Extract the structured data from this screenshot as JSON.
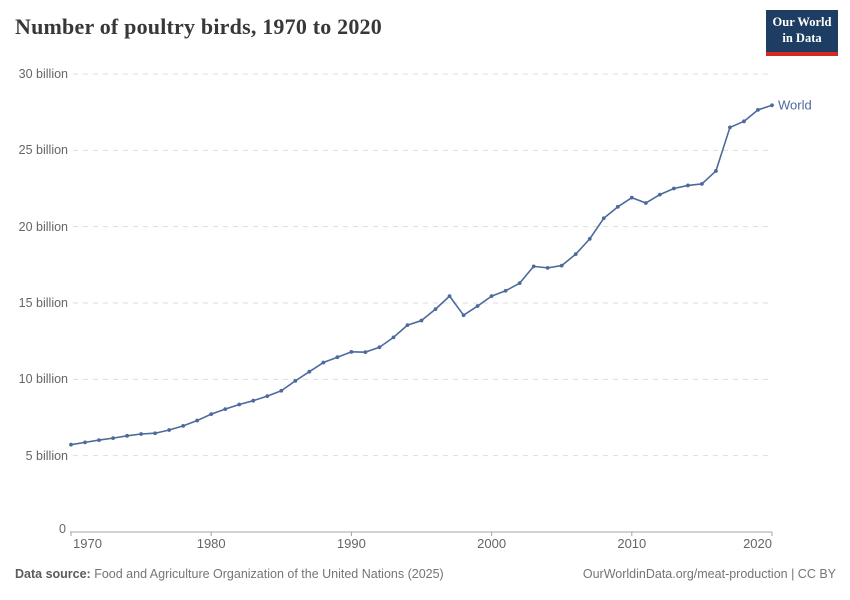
{
  "header": {
    "title": "Number of poultry birds, 1970 to 2020",
    "logo": {
      "line1": "Our World",
      "line2": "in Data"
    }
  },
  "chart_data": {
    "type": "line",
    "title": "Number of poultry birds, 1970 to 2020",
    "unit": "billion birds",
    "grid": "horizontal dashed",
    "legend_position": "end-of-line label",
    "xlim": [
      1970,
      2020
    ],
    "ylim": [
      0,
      30
    ],
    "x_ticks": [
      1970,
      1980,
      1990,
      2000,
      2010,
      2020
    ],
    "y_ticks": [
      {
        "value": 5,
        "label": "5 billion"
      },
      {
        "value": 10,
        "label": "10 billion"
      },
      {
        "value": 15,
        "label": "15 billion"
      },
      {
        "value": 20,
        "label": "20 billion"
      },
      {
        "value": 25,
        "label": "25 billion"
      },
      {
        "value": 30,
        "label": "30 billion"
      }
    ],
    "y_zero_label": "0",
    "x": [
      1970,
      1971,
      1972,
      1973,
      1974,
      1975,
      1976,
      1977,
      1978,
      1979,
      1980,
      1981,
      1982,
      1983,
      1984,
      1985,
      1986,
      1987,
      1988,
      1989,
      1990,
      1991,
      1992,
      1993,
      1994,
      1995,
      1996,
      1997,
      1998,
      1999,
      2000,
      2001,
      2002,
      2003,
      2004,
      2005,
      2006,
      2007,
      2008,
      2009,
      2010,
      2011,
      2012,
      2013,
      2014,
      2015,
      2016,
      2017,
      2018,
      2019,
      2020
    ],
    "series": [
      {
        "name": "World",
        "color": "#4c6a9c",
        "values": [
          5.72,
          5.87,
          6.02,
          6.15,
          6.3,
          6.42,
          6.47,
          6.68,
          6.95,
          7.3,
          7.72,
          8.05,
          8.35,
          8.6,
          8.9,
          9.25,
          9.9,
          10.5,
          11.1,
          11.45,
          11.8,
          11.78,
          12.1,
          12.75,
          13.55,
          13.85,
          14.6,
          15.45,
          14.2,
          14.8,
          15.45,
          15.8,
          16.3,
          17.4,
          17.3,
          17.45,
          18.2,
          19.2,
          20.55,
          21.3,
          21.9,
          21.55,
          22.1,
          22.5,
          22.7,
          22.8,
          23.65,
          26.5,
          26.9,
          27.65,
          27.95
        ]
      }
    ]
  },
  "footer": {
    "datasource_label": "Data source:",
    "datasource_text": " Food and Agriculture Organization of the United Nations (2025)",
    "credit": "OurWorldinData.org/meat-production | CC BY"
  },
  "colors": {
    "line": "#4c6a9c",
    "grid": "#dddddd",
    "axis": "#a5a5a5",
    "tick_text": "#666666",
    "logo_bg": "#1d3d63",
    "logo_red": "#d42b21",
    "title_text": "#383838",
    "footer_text": "#757575"
  }
}
